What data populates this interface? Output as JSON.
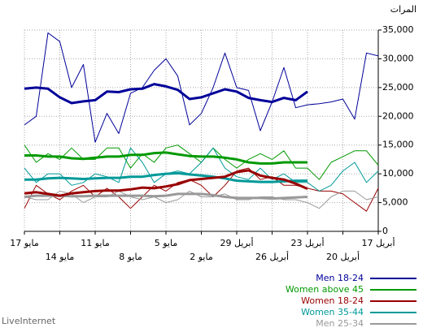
{
  "chart_data": {
    "type": "line",
    "y_label": "المرات",
    "source": "LiveInternet",
    "categories": [
      "17 مايو",
      null,
      null,
      "14 مايو",
      null,
      null,
      "11 مايو",
      null,
      null,
      "8 مايو",
      null,
      null,
      "5 مايو",
      null,
      null,
      "2 مايو",
      null,
      null,
      "29 أبريل",
      null,
      null,
      "26 أبريل",
      null,
      null,
      "23 أبريل",
      null,
      null,
      "20 أبريل",
      null,
      null,
      "17 أبريل"
    ],
    "ylim": [
      0,
      35000
    ],
    "yticks": [
      0,
      {
        "value": 5000,
        "label": "5,000"
      },
      {
        "value": 10000,
        "label": "10,000"
      },
      {
        "value": 15000,
        "label": "15,000"
      },
      {
        "value": 20000,
        "label": "20,000"
      },
      {
        "value": 25000,
        "label": "25,000"
      },
      {
        "value": 30000,
        "label": "30,000"
      },
      {
        "value": 35000,
        "label": "35,000"
      }
    ],
    "grid": true,
    "series": [
      {
        "name": "Men 18-24",
        "color": "#000099",
        "values": [
          18500,
          20000,
          34500,
          33000,
          25000,
          29000,
          15500,
          20500,
          17000,
          24000,
          25000,
          28000,
          30000,
          27000,
          18500,
          20500,
          25000,
          31000,
          25000,
          24500,
          17500,
          22500,
          28500,
          21500,
          22000,
          22200,
          22500,
          23000,
          19500,
          31000,
          30500
        ],
        "average": [
          24800,
          25000,
          24800,
          23300,
          22300,
          22600,
          22800,
          24300,
          24200,
          24700,
          24800,
          25600,
          25200,
          24600,
          23000,
          23300,
          24000,
          24700,
          24300,
          23200,
          22800,
          22500,
          23200,
          22800,
          24300,
          null,
          null,
          null,
          null,
          null,
          null
        ]
      },
      {
        "name": "Women above 45",
        "color": "#009900",
        "values": [
          15000,
          12000,
          13500,
          12500,
          14500,
          12500,
          12500,
          14500,
          14500,
          11000,
          13500,
          12000,
          14500,
          15000,
          13500,
          12000,
          14500,
          12500,
          11000,
          12500,
          13500,
          12500,
          14000,
          11000,
          11000,
          9000,
          12000,
          13000,
          14000,
          14000,
          11500
        ],
        "average": [
          13200,
          13200,
          13000,
          13000,
          12700,
          12600,
          12800,
          13000,
          13000,
          13300,
          13300,
          13600,
          13700,
          13400,
          13100,
          13000,
          13000,
          12800,
          12500,
          12000,
          11800,
          11800,
          12000,
          12000,
          12000,
          null,
          null,
          null,
          null,
          null,
          null
        ]
      },
      {
        "name": "Women 18-24",
        "color": "#990000",
        "values": [
          4000,
          8000,
          6500,
          5500,
          7000,
          8000,
          6000,
          7500,
          6000,
          4000,
          6000,
          8000,
          7000,
          8500,
          9000,
          8000,
          6000,
          8000,
          10500,
          11000,
          9000,
          9500,
          8000,
          8000,
          7500,
          7000,
          7000,
          6500,
          5000,
          3500,
          7500
        ],
        "average": [
          6600,
          6800,
          6500,
          6200,
          6600,
          6800,
          7000,
          7100,
          7100,
          7300,
          7600,
          7500,
          7800,
          8200,
          8900,
          9100,
          9300,
          9500,
          10300,
          10600,
          9700,
          9300,
          9000,
          8300,
          7400,
          null,
          null,
          null,
          null,
          null,
          null
        ]
      },
      {
        "name": "Women 35-44",
        "color": "#009999",
        "values": [
          11000,
          8500,
          10000,
          10000,
          8000,
          8500,
          10000,
          9500,
          8500,
          14500,
          12000,
          8500,
          10000,
          10500,
          10000,
          12000,
          14500,
          11000,
          9500,
          9000,
          11000,
          9000,
          10000,
          8500,
          8500,
          7000,
          8000,
          10500,
          12000,
          8500,
          10500
        ],
        "average": [
          9000,
          9000,
          9200,
          9300,
          9200,
          9100,
          9200,
          9300,
          9300,
          9500,
          9500,
          9800,
          10000,
          10100,
          9900,
          9700,
          9500,
          9200,
          8800,
          8700,
          8600,
          8600,
          8700,
          8800,
          8800,
          null,
          null,
          null,
          null,
          null,
          null
        ]
      },
      {
        "name": "Men 25-34",
        "color": "#999999",
        "values": [
          6000,
          5500,
          5500,
          7000,
          6500,
          5000,
          6000,
          6000,
          7000,
          6000,
          5500,
          6000,
          5000,
          5500,
          7000,
          6000,
          6000,
          6500,
          5500,
          5500,
          6000,
          6000,
          5500,
          5500,
          5000,
          4000,
          6000,
          7000,
          7000,
          5500,
          6000
        ],
        "average": [
          6000,
          6200,
          6200,
          6200,
          6100,
          6100,
          6200,
          6200,
          6200,
          6200,
          6200,
          6100,
          6200,
          6500,
          6500,
          6500,
          6300,
          6000,
          5800,
          5800,
          5800,
          5700,
          5800,
          5900,
          6000,
          null,
          null,
          null,
          null,
          null,
          null
        ]
      }
    ]
  }
}
